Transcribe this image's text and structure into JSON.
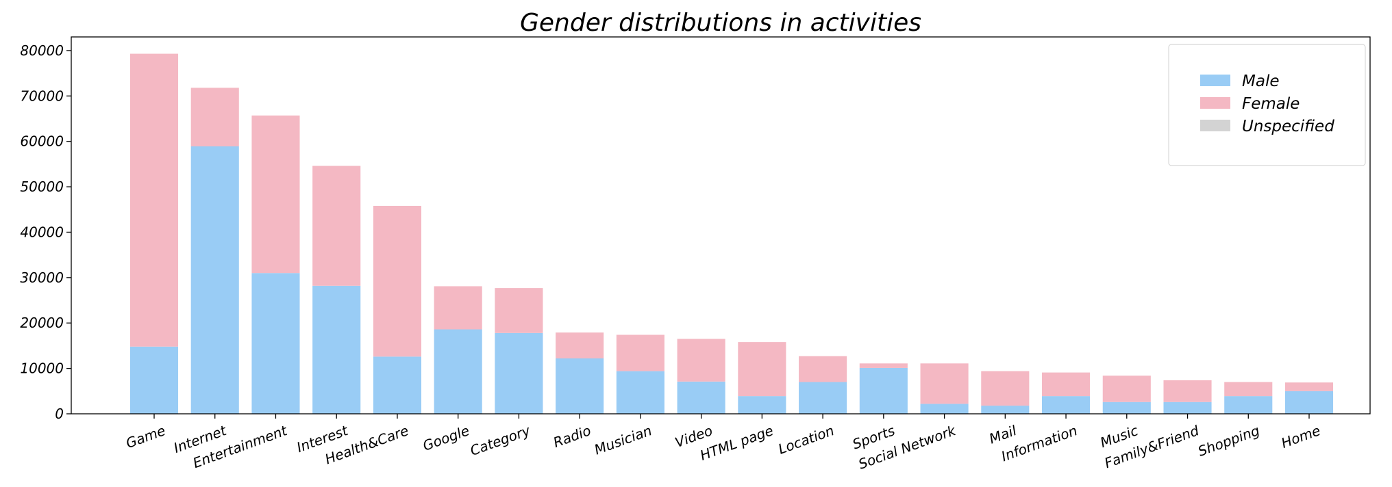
{
  "chart_data": {
    "type": "bar",
    "stacked": true,
    "title": "Gender distributions in activities",
    "xlabel": "",
    "ylabel": "",
    "ylim": [
      0,
      83000
    ],
    "yticks": [
      0,
      10000,
      20000,
      30000,
      40000,
      50000,
      60000,
      70000,
      80000
    ],
    "grid": false,
    "legend_position": "top-right",
    "categories": [
      "Game",
      "Internet",
      "Entertainment",
      "Interest",
      "Health&Care",
      "Google",
      "Category",
      "Radio",
      "Musician",
      "Video",
      "HTML page",
      "Location",
      "Sports",
      "Social Network",
      "Mail",
      "Information",
      "Music",
      "Family&Friend",
      "Shopping",
      "Home"
    ],
    "series": [
      {
        "name": "Male",
        "color": "#99ccf5",
        "values": [
          14800,
          58900,
          31000,
          28200,
          12600,
          18600,
          17800,
          12200,
          9400,
          7100,
          3900,
          7000,
          10100,
          2200,
          1800,
          3900,
          2600,
          2600,
          3900,
          5000
        ]
      },
      {
        "name": "Female",
        "color": "#f4b8c3",
        "values": [
          64500,
          12900,
          34700,
          26400,
          33200,
          9500,
          9900,
          5700,
          8000,
          9400,
          11900,
          5700,
          1000,
          8900,
          7600,
          5200,
          5800,
          4800,
          3100,
          1900
        ]
      },
      {
        "name": "Unspecified",
        "color": "#d3d3d3",
        "values": [
          0,
          0,
          0,
          0,
          0,
          0,
          0,
          0,
          0,
          0,
          0,
          0,
          0,
          0,
          0,
          0,
          0,
          0,
          0,
          0
        ]
      }
    ]
  }
}
